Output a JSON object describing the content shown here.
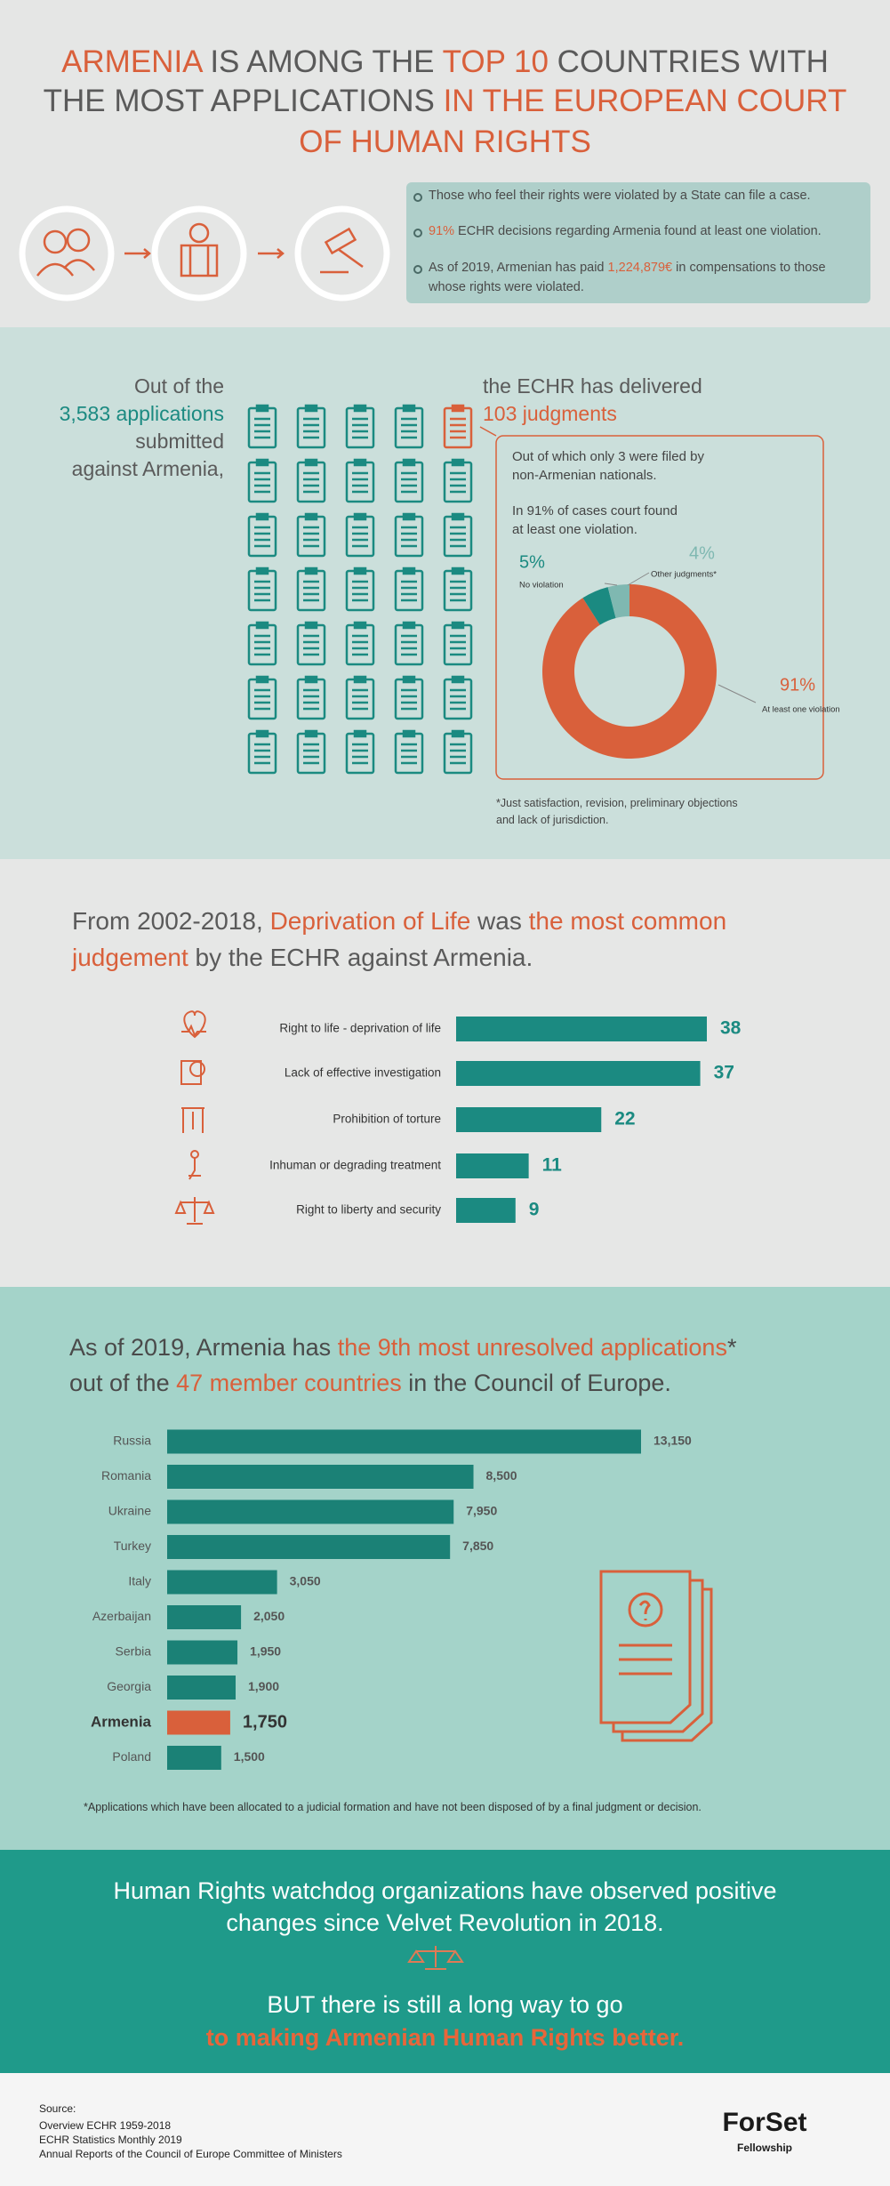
{
  "header": {
    "title_lines": [
      [
        "ARMENIA",
        " IS AMONG THE ",
        "TOP 10",
        " COUNTRIES WITH"
      ],
      [
        "THE MOST APPLICATIONS ",
        "IN THE EUROPEAN COURT"
      ],
      [
        "OF HUMAN RIGHTS"
      ]
    ],
    "bullets": [
      [
        "Those who feel their rights were violated by a State can file a case."
      ],
      [
        "91%",
        " ECHR decisions regarding Armenia found at least one violation."
      ],
      [
        "As of 2019, Armenian has paid ",
        "1,224,879€",
        " in compensations to those"
      ],
      [
        "whose rights were violated."
      ]
    ]
  },
  "applications": {
    "left": [
      "Out of the",
      "3,583 applications",
      "submitted",
      "against Armenia,"
    ],
    "right": [
      "the ECHR has delivered",
      "103 judgments"
    ],
    "box": [
      "Out of which only 3 were filed by",
      "non-Armenian nationals.",
      "In 91% of cases court found",
      "at least one violation."
    ],
    "donut": {
      "type": "pie",
      "categories": [
        "At least one violation",
        "No violation",
        "Other judgments*"
      ],
      "values": [
        91,
        5,
        4
      ],
      "value_labels": [
        "91%",
        "5%",
        "4%"
      ],
      "colors": [
        "#d9603b",
        "#1b8a81",
        "#7fb8b1"
      ]
    },
    "footnote": [
      "*Just satisfaction, revision, preliminary objections",
      "and lack of jurisdiction."
    ]
  },
  "judgements": {
    "heading": [
      [
        "From 2002-2018, ",
        "Deprivation of Life",
        " was ",
        "the most common"
      ],
      [
        "judgement",
        " by the ECHR against Armenia."
      ]
    ],
    "chart": {
      "type": "bar",
      "categories": [
        "Right to life - deprivation of life",
        "Lack of effective investigation",
        "Prohibition of torture",
        "Inhuman or degrading treatment",
        "Right to liberty and security"
      ],
      "values": [
        38,
        37,
        22,
        11,
        9
      ],
      "color": "#1b8a81"
    }
  },
  "unresolved": {
    "heading": [
      [
        "As of 2019, Armenia has ",
        "the 9th most unresolved applications",
        "*"
      ],
      [
        "out of the ",
        "47 member countries",
        " in the Council of Europe."
      ]
    ],
    "chart": {
      "type": "bar",
      "categories": [
        "Russia",
        "Romania",
        "Ukraine",
        "Turkey",
        "Italy",
        "Azerbaijan",
        "Serbia",
        "Georgia",
        "Armenia",
        "Poland"
      ],
      "values": [
        13150,
        8500,
        7950,
        7850,
        3050,
        2050,
        1950,
        1900,
        1750,
        1500
      ],
      "value_labels": [
        "13,150",
        "8,500",
        "7,950",
        "7,850",
        "3,050",
        "2,050",
        "1,950",
        "1,900",
        "1,750",
        "1,500"
      ],
      "colors": [
        "#1b8176",
        "#1b8176",
        "#1b8176",
        "#1b8176",
        "#1b8176",
        "#1b8176",
        "#1b8176",
        "#1b8176",
        "#d9603b",
        "#1b8176"
      ]
    },
    "footnote": "*Applications which have been allocated to a judicial formation and have not been disposed of by a final judgment or decision."
  },
  "conclusion": {
    "lines": [
      "Human Rights watchdog organizations have observed positive",
      "changes since Velvet Revolution in 2018."
    ],
    "but": "BUT there is still a long way to go",
    "emphasis": "to making Armenian Human Rights better."
  },
  "footer": {
    "sources": [
      "Source:",
      "Overview ECHR 1959-2018",
      "ECHR Statistics Monthly 2019",
      "Annual Reports of the Council of Europe Committee of Ministers"
    ],
    "logo": "ForSet",
    "logo_sub": "Fellowship"
  }
}
